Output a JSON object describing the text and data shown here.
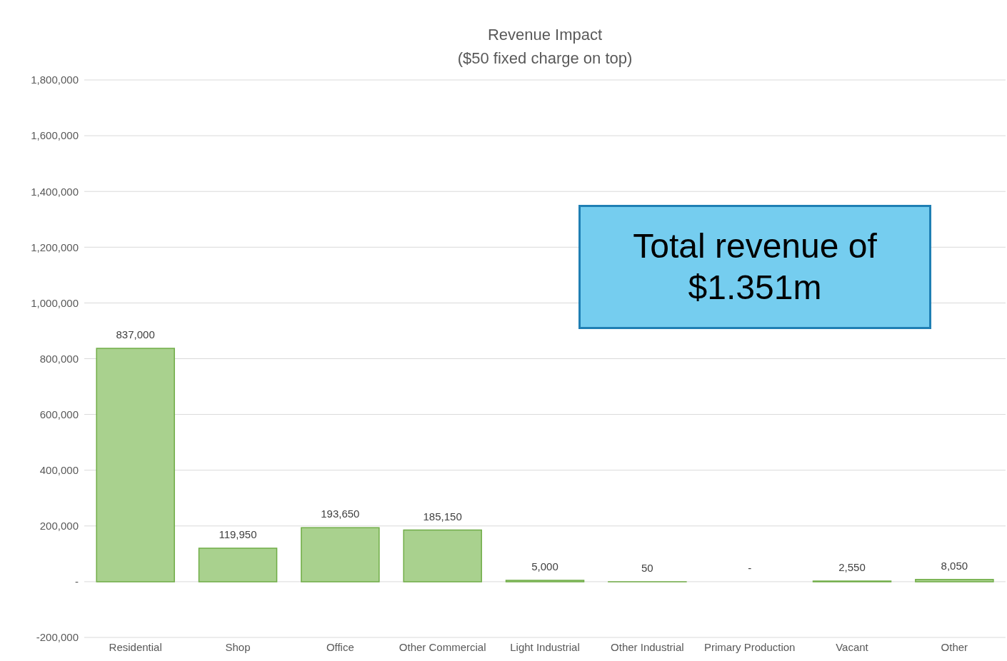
{
  "chart_data": {
    "type": "bar",
    "title": "Revenue Impact",
    "subtitle": "($50 fixed charge on top)",
    "categories": [
      "Residential",
      "Shop",
      "Office",
      "Other Commercial",
      "Light Industrial",
      "Other Industrial",
      "Primary Production",
      "Vacant",
      "Other"
    ],
    "values": [
      837000,
      119950,
      193650,
      185150,
      5000,
      50,
      0,
      2550,
      8050
    ],
    "value_labels": [
      "837,000",
      "119,950",
      "193,650",
      "185,150",
      "5,000",
      "50",
      "-",
      "2,550",
      "8,050"
    ],
    "color": "#a9d18e",
    "ylim": [
      -200000,
      1800000
    ],
    "yticks": [
      {
        "value": -200000,
        "label": "-200,000"
      },
      {
        "value": 0,
        "label": "-"
      },
      {
        "value": 200000,
        "label": "200,000"
      },
      {
        "value": 400000,
        "label": "400,000"
      },
      {
        "value": 600000,
        "label": "600,000"
      },
      {
        "value": 800000,
        "label": "800,000"
      },
      {
        "value": 1000000,
        "label": "1,000,000"
      },
      {
        "value": 1200000,
        "label": "1,200,000"
      },
      {
        "value": 1400000,
        "label": "1,400,000"
      },
      {
        "value": 1600000,
        "label": "1,600,000"
      },
      {
        "value": 1800000,
        "label": "1,800,000"
      }
    ],
    "grid": "y",
    "annotations": [
      "Total revenue of $1.351m"
    ]
  }
}
